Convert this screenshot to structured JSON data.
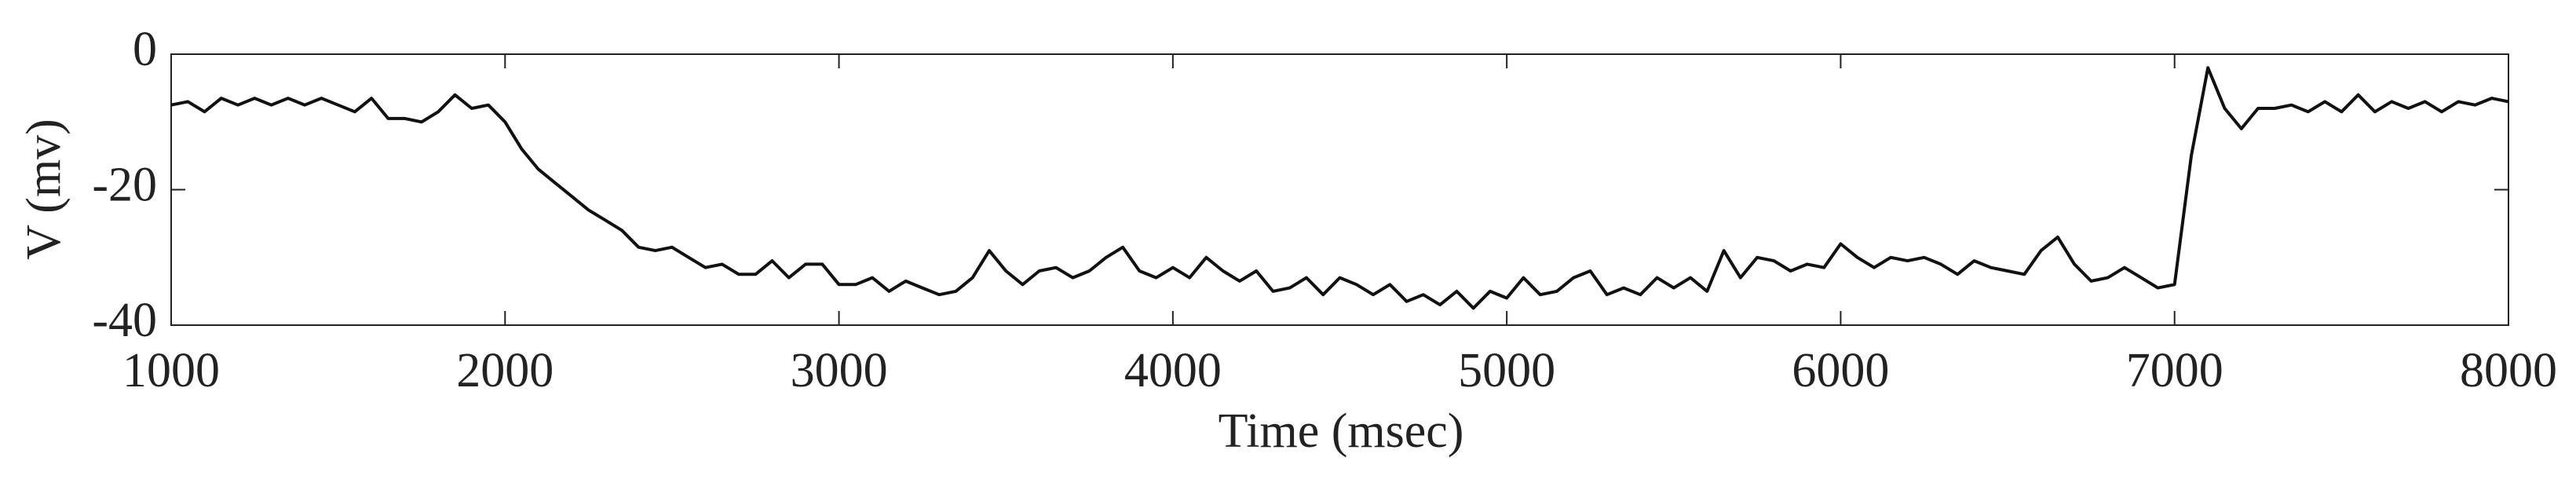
{
  "chart_data": {
    "type": "line",
    "xlabel": "Time (msec)",
    "ylabel": "V (mv)",
    "xlim": [
      1000,
      8000
    ],
    "ylim": [
      -40,
      0
    ],
    "xticks": [
      1000,
      2000,
      3000,
      4000,
      5000,
      6000,
      7000,
      8000
    ],
    "yticks": [
      -40,
      -20,
      0
    ],
    "x": [
      1000,
      1050,
      1100,
      1150,
      1200,
      1250,
      1300,
      1350,
      1400,
      1450,
      1500,
      1550,
      1600,
      1650,
      1700,
      1750,
      1800,
      1850,
      1900,
      1950,
      2000,
      2050,
      2100,
      2150,
      2200,
      2250,
      2300,
      2350,
      2400,
      2450,
      2500,
      2550,
      2600,
      2650,
      2700,
      2750,
      2800,
      2850,
      2900,
      2950,
      3000,
      3050,
      3100,
      3150,
      3200,
      3250,
      3300,
      3350,
      3400,
      3450,
      3500,
      3550,
      3600,
      3650,
      3700,
      3750,
      3800,
      3850,
      3900,
      3950,
      4000,
      4050,
      4100,
      4150,
      4200,
      4250,
      4300,
      4350,
      4400,
      4450,
      4500,
      4550,
      4600,
      4650,
      4700,
      4750,
      4800,
      4850,
      4900,
      4950,
      5000,
      5050,
      5100,
      5150,
      5200,
      5250,
      5300,
      5350,
      5400,
      5450,
      5500,
      5550,
      5600,
      5650,
      5700,
      5750,
      5800,
      5850,
      5900,
      5950,
      6000,
      6050,
      6100,
      6150,
      6200,
      6250,
      6300,
      6350,
      6400,
      6450,
      6500,
      6550,
      6600,
      6650,
      6700,
      6750,
      6800,
      6850,
      6900,
      6950,
      7000,
      7050,
      7100,
      7150,
      7200,
      7250,
      7300,
      7350,
      7400,
      7450,
      7500,
      7550,
      7600,
      7650,
      7700,
      7750,
      7800,
      7850,
      7900,
      7950,
      8000
    ],
    "series": [
      {
        "color": "#111111",
        "values": [
          -7.5,
          -7,
          -8.5,
          -6.5,
          -7.5,
          -6.5,
          -7.5,
          -6.5,
          -7.5,
          -6.5,
          -7.5,
          -8.5,
          -6.5,
          -9.5,
          -9.5,
          -10,
          -8.5,
          -6,
          -8,
          -7.5,
          -10,
          -14,
          -17,
          -19,
          -21,
          -23,
          -24.5,
          -26,
          -28.5,
          -29,
          -28.5,
          -30,
          -31.5,
          -31,
          -32.5,
          -32.5,
          -30.5,
          -33,
          -31,
          -31,
          -34,
          -34,
          -33,
          -35,
          -33.5,
          -34.5,
          -35.5,
          -35,
          -33,
          -29,
          -32,
          -34,
          -32,
          -31.5,
          -33,
          -32,
          -30,
          -28.5,
          -32,
          -33,
          -31.5,
          -33,
          -30,
          -32,
          -33.5,
          -32,
          -35,
          -34.5,
          -33,
          -35.5,
          -33,
          -34,
          -35.5,
          -34,
          -36.5,
          -35.5,
          -37,
          -35,
          -37.5,
          -35,
          -36,
          -33,
          -35.5,
          -35,
          -33,
          -32,
          -35.5,
          -34.5,
          -35.5,
          -33,
          -34.5,
          -33,
          -35,
          -29,
          -33,
          -30,
          -30.5,
          -32,
          -31,
          -31.5,
          -28,
          -30,
          -31.5,
          -30,
          -30.5,
          -30,
          -31,
          -32.5,
          -30.5,
          -31.5,
          -32,
          -32.5,
          -29,
          -27,
          -31,
          -33.5,
          -33,
          -31.5,
          -33,
          -34.5,
          -34,
          -15,
          -2,
          -8,
          -11,
          -8,
          -8,
          -7.5,
          -8.5,
          -7,
          -8.5,
          -6,
          -8.5,
          -7,
          -8,
          -7,
          -8.5,
          -7,
          -7.5,
          -6.5,
          -7
        ]
      }
    ]
  }
}
